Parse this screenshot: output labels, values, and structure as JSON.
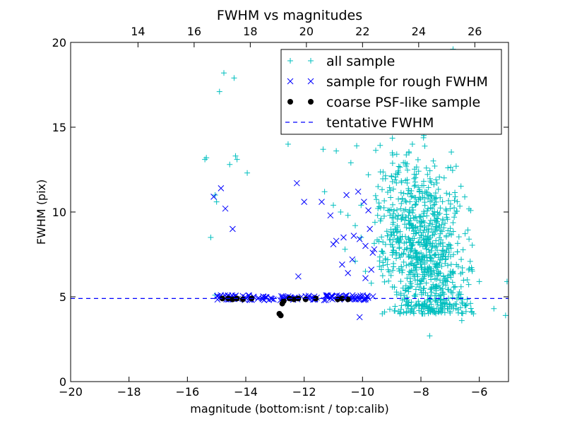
{
  "chart_data": {
    "type": "scatter",
    "title": "FWHM vs magnitudes",
    "xlabel": "magnitude (bottom:isnt / top:calib)",
    "ylabel": "FWHM (pix)",
    "xlim": [
      -20,
      -5
    ],
    "ylim": [
      0,
      20
    ],
    "x_ticks": [
      -20,
      -18,
      -16,
      -14,
      -12,
      -10,
      -8,
      -6
    ],
    "x_tick_labels": [
      "−20",
      "−18",
      "−16",
      "−14",
      "−12",
      "−10",
      "−8",
      "−6"
    ],
    "y_ticks": [
      0,
      5,
      10,
      15,
      20
    ],
    "y_tick_labels": [
      "0",
      "5",
      "10",
      "15",
      "20"
    ],
    "top_axis": {
      "xlim": [
        11.6,
        27.2
      ],
      "ticks": [
        14,
        16,
        18,
        20,
        22,
        24,
        26
      ],
      "tick_labels": [
        "14",
        "16",
        "18",
        "20",
        "22",
        "24",
        "26"
      ]
    },
    "legend_position": "upper-right",
    "grid": false,
    "series": [
      {
        "name": "all sample",
        "marker": "plus",
        "color": "#00bfbf",
        "points": [
          [
            -15.4,
            13.1
          ],
          [
            -15.35,
            13.2
          ],
          [
            -15.2,
            8.5
          ],
          [
            -15.05,
            11.0
          ],
          [
            -15.0,
            10.6
          ],
          [
            -14.9,
            17.1
          ],
          [
            -14.75,
            18.2
          ],
          [
            -14.4,
            17.9
          ],
          [
            -14.55,
            12.8
          ],
          [
            -14.35,
            13.3
          ],
          [
            -14.3,
            13.1
          ],
          [
            -13.95,
            12.3
          ],
          [
            -15.05,
            5.1
          ],
          [
            -12.55,
            14.0
          ],
          [
            -11.35,
            13.7
          ],
          [
            -10.9,
            13.6
          ],
          [
            -10.4,
            12.9
          ],
          [
            -10.2,
            13.9
          ],
          [
            -10.05,
            10.4
          ],
          [
            -9.8,
            12.2
          ],
          [
            -11.3,
            11.2
          ],
          [
            -11.0,
            10.4
          ],
          [
            -10.75,
            10.0
          ],
          [
            -10.5,
            9.8
          ],
          [
            -10.25,
            9.2
          ],
          [
            -10.05,
            8.5
          ],
          [
            -10.6,
            7.8
          ],
          [
            -10.25,
            7.1
          ],
          [
            -9.9,
            6.5
          ],
          [
            -9.7,
            5.8
          ],
          [
            -7.0,
            10.2
          ],
          [
            -6.0,
            5.9
          ],
          [
            -5.5,
            4.3
          ],
          [
            -5.1,
            3.9
          ],
          [
            -5.05,
            5.9
          ],
          [
            -7.7,
            2.7
          ],
          [
            -6.6,
            3.6
          ],
          [
            -6.2,
            4.0
          ],
          [
            -6.9,
            19.6
          ]
        ]
      },
      {
        "name": "sample for rough FWHM",
        "marker": "x",
        "color": "#0000ff",
        "points": [
          [
            -15.1,
            10.9
          ],
          [
            -14.85,
            11.4
          ],
          [
            -14.7,
            10.2
          ],
          [
            -14.45,
            9.0
          ],
          [
            -12.25,
            11.7
          ],
          [
            -12.0,
            10.6
          ],
          [
            -11.4,
            10.6
          ],
          [
            -11.1,
            9.8
          ],
          [
            -10.55,
            11.0
          ],
          [
            -10.15,
            11.2
          ],
          [
            -9.95,
            10.6
          ],
          [
            -9.8,
            10.1
          ],
          [
            -9.75,
            9.0
          ],
          [
            -10.3,
            8.6
          ],
          [
            -10.1,
            8.4
          ],
          [
            -9.9,
            8.0
          ],
          [
            -9.65,
            7.6
          ],
          [
            -10.65,
            8.5
          ],
          [
            -10.9,
            8.3
          ],
          [
            -11.0,
            8.1
          ],
          [
            -10.35,
            7.2
          ],
          [
            -10.7,
            6.9
          ],
          [
            -10.5,
            6.4
          ],
          [
            -12.2,
            6.2
          ],
          [
            -9.9,
            6.1
          ],
          [
            -10.1,
            3.8
          ],
          [
            -9.6,
            7.8
          ],
          [
            -9.7,
            6.6
          ]
        ]
      },
      {
        "name": "coarse PSF-like sample",
        "marker": "dot",
        "color": "#000000",
        "points": [
          [
            -14.8,
            4.9
          ],
          [
            -14.6,
            4.9
          ],
          [
            -14.45,
            4.85
          ],
          [
            -14.3,
            4.9
          ],
          [
            -14.1,
            4.85
          ],
          [
            -13.8,
            4.9
          ],
          [
            -12.85,
            4.0
          ],
          [
            -12.8,
            3.9
          ],
          [
            -12.75,
            4.6
          ],
          [
            -12.7,
            4.75
          ],
          [
            -12.5,
            4.9
          ],
          [
            -12.35,
            4.85
          ],
          [
            -12.2,
            4.9
          ],
          [
            -11.95,
            4.85
          ],
          [
            -11.6,
            4.9
          ],
          [
            -10.85,
            4.85
          ],
          [
            -10.7,
            4.9
          ],
          [
            -10.5,
            4.85
          ]
        ]
      },
      {
        "name": "tentative FWHM",
        "marker": "dashed-line",
        "color": "#0000ff",
        "y": 4.9
      }
    ],
    "dense_regions": {
      "all_sample_cloud": {
        "center": [
          -7.9,
          7.8
        ],
        "x_range": [
          -9.6,
          -6.2
        ],
        "y_range": [
          4.0,
          20.0
        ],
        "approx_points": 900
      },
      "rough_band": {
        "x_range": [
          -15.0,
          -9.6
        ],
        "y_range": [
          4.8,
          5.1
        ],
        "approx_points": 120
      }
    }
  }
}
